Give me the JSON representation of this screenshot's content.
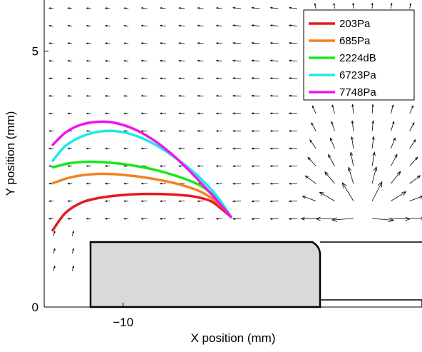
{
  "chart_data": {
    "type": "line",
    "xlabel": "X position (mm)",
    "ylabel": "Y position (mm)",
    "xlim": [
      -13.7,
      4.0
    ],
    "ylim": [
      0,
      6
    ],
    "x_ticks": [
      {
        "value": -10,
        "label": "−10"
      }
    ],
    "y_ticks": [
      {
        "value": 0,
        "label": "0"
      },
      {
        "value": 5,
        "label": "5"
      }
    ],
    "legend_position": "top-right",
    "grid": false,
    "series": [
      {
        "name": "203Pa",
        "color": "#e8191a",
        "x": [
          -13.3,
          -12.7,
          -11.9,
          -11.0,
          -10.0,
          -8.9,
          -7.8,
          -6.7,
          -5.9,
          -5.4,
          -4.95
        ],
        "y": [
          1.5,
          1.84,
          2.05,
          2.14,
          2.19,
          2.21,
          2.2,
          2.16,
          2.07,
          1.92,
          1.76
        ]
      },
      {
        "name": "685Pa",
        "color": "#f5821f",
        "x": [
          -13.3,
          -12.5,
          -11.6,
          -10.6,
          -9.5,
          -8.4,
          -7.4,
          -6.4,
          -5.7,
          -5.3,
          -4.95
        ],
        "y": [
          2.42,
          2.53,
          2.59,
          2.6,
          2.56,
          2.49,
          2.4,
          2.26,
          2.08,
          1.93,
          1.76
        ]
      },
      {
        "name": "2224dB",
        "color": "#17e817",
        "x": [
          -13.3,
          -12.5,
          -11.6,
          -10.6,
          -9.6,
          -8.5,
          -7.5,
          -6.5,
          -5.8,
          -5.35,
          -4.95
        ],
        "y": [
          2.73,
          2.81,
          2.84,
          2.82,
          2.77,
          2.68,
          2.56,
          2.4,
          2.2,
          2.0,
          1.76
        ]
      },
      {
        "name": "6723Pa",
        "color": "#1ee8e8",
        "x": [
          -13.3,
          -12.7,
          -11.9,
          -11.1,
          -10.2,
          -9.3,
          -8.4,
          -7.5,
          -6.6,
          -5.8,
          -5.3,
          -4.95
        ],
        "y": [
          2.86,
          3.15,
          3.34,
          3.43,
          3.43,
          3.33,
          3.15,
          2.9,
          2.6,
          2.26,
          1.99,
          1.76
        ]
      },
      {
        "name": "7748Pa",
        "color": "#f013f0",
        "x": [
          -13.3,
          -12.7,
          -12.0,
          -11.2,
          -10.4,
          -9.5,
          -8.6,
          -7.7,
          -6.8,
          -5.9,
          -5.35,
          -4.95
        ],
        "y": [
          3.17,
          3.41,
          3.56,
          3.62,
          3.6,
          3.48,
          3.27,
          2.98,
          2.62,
          2.22,
          1.96,
          1.76
        ]
      }
    ]
  }
}
